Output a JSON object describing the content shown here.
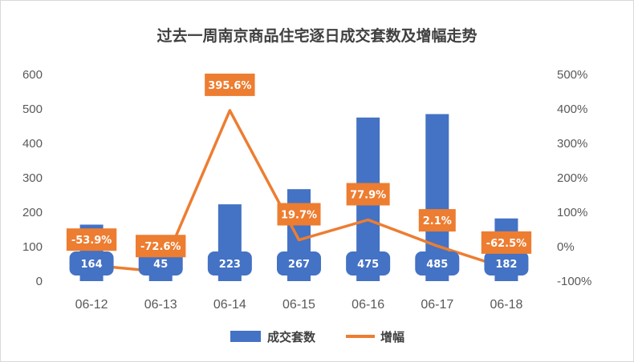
{
  "chart_data": {
    "type": "bar",
    "title": "过去一周南京商品住宅逐日成交套数及增幅走势",
    "categories": [
      "06-12",
      "06-13",
      "06-14",
      "06-15",
      "06-16",
      "06-17",
      "06-18"
    ],
    "series": [
      {
        "name": "成交套数",
        "type": "bar",
        "axis": "left",
        "color": "#4472c4",
        "values": [
          164,
          45,
          223,
          267,
          475,
          485,
          182
        ],
        "labels": [
          "164",
          "45",
          "223",
          "267",
          "475",
          "485",
          "182"
        ]
      },
      {
        "name": "增幅",
        "type": "line",
        "axis": "right",
        "color": "#ed7d31",
        "values": [
          -53.9,
          -72.6,
          395.6,
          19.7,
          77.9,
          2.1,
          -62.5
        ],
        "labels": [
          "-53.9%",
          "-72.6%",
          "395.6%",
          "19.7%",
          "77.9%",
          "2.1%",
          "-62.5%"
        ]
      }
    ],
    "y_left": {
      "min": 0,
      "max": 600,
      "ticks": [
        0,
        100,
        200,
        300,
        400,
        500,
        600
      ],
      "tick_labels": [
        "0",
        "100",
        "200",
        "300",
        "400",
        "500",
        "600"
      ]
    },
    "y_right": {
      "min": -100,
      "max": 500,
      "ticks": [
        -100,
        0,
        100,
        200,
        300,
        400,
        500
      ],
      "tick_labels": [
        "-100%",
        "0%",
        "100%",
        "200%",
        "300%",
        "400%",
        "500%"
      ]
    },
    "grid": false,
    "legend": "bottom"
  }
}
